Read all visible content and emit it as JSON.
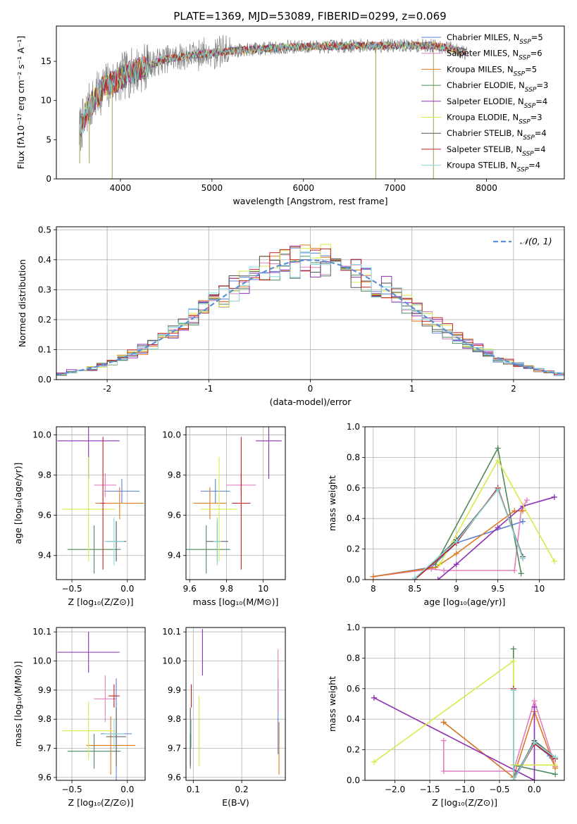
{
  "figure": {
    "title": "PLATE=1369, MJD=53089, FIBERID=0299, z=0.069"
  },
  "colors": {
    "Chabrier MILES": "#5b7fd6",
    "Salpeter MILES": "#e27fc0",
    "Kroupa MILES": "#e07a1f",
    "Chabrier ELODIE": "#4f8a5a",
    "Salpeter ELODIE": "#8e2fb2",
    "Kroupa ELODIE": "#d8ea4a",
    "Chabrier STELIB": "#555555",
    "Salpeter STELIB": "#c01f1f",
    "Kroupa STELIB": "#86d8da",
    "normal": "#5b8fd6",
    "data": "#808080"
  },
  "legend_spectrum": [
    {
      "model": "Chabrier MILES",
      "text": "Chabrier MILES, N",
      "sub": "SSP",
      "tail": "=5"
    },
    {
      "model": "Salpeter MILES",
      "text": "Salpeter MILES, N",
      "sub": "SSP",
      "tail": "=6"
    },
    {
      "model": "Kroupa MILES",
      "text": "Kroupa MILES, N",
      "sub": "SSP",
      "tail": "=5"
    },
    {
      "model": "Chabrier ELODIE",
      "text": "Chabrier ELODIE, N",
      "sub": "SSP",
      "tail": "=3"
    },
    {
      "model": "Salpeter ELODIE",
      "text": "Salpeter ELODIE, N",
      "sub": "SSP",
      "tail": "=4"
    },
    {
      "model": "Kroupa ELODIE",
      "text": "Kroupa ELODIE, N",
      "sub": "SSP",
      "tail": "=3"
    },
    {
      "model": "Chabrier STELIB",
      "text": "Chabrier STELIB, N",
      "sub": "SSP",
      "tail": "=4"
    },
    {
      "model": "Salpeter STELIB",
      "text": "Salpeter STELIB, N",
      "sub": "SSP",
      "tail": "=4"
    },
    {
      "model": "Kroupa STELIB",
      "text": "Kroupa STELIB, N",
      "sub": "SSP",
      "tail": "=4"
    }
  ],
  "chart_data": [
    {
      "id": "spectrum",
      "type": "line",
      "xlabel": "wavelength [Angstrom, rest frame]",
      "ylabel": "Flux [fλ10⁻¹⁷ erg cm⁻² s⁻¹ A⁻¹]",
      "xlim": [
        3300,
        8850
      ],
      "ylim": [
        0,
        19.5
      ],
      "xticks": [
        4000,
        5000,
        6000,
        7000,
        8000
      ],
      "yticks": [
        0,
        5,
        10,
        15
      ],
      "grid": false,
      "continuum": [
        [
          3550,
          6
        ],
        [
          3650,
          9
        ],
        [
          3800,
          11.5
        ],
        [
          3950,
          12.5
        ],
        [
          4100,
          13.5
        ],
        [
          4300,
          14.5
        ],
        [
          4500,
          15.3
        ],
        [
          4800,
          15.8
        ],
        [
          5100,
          16.2
        ],
        [
          5400,
          16.5
        ],
        [
          5800,
          16.8
        ],
        [
          6200,
          16.9
        ],
        [
          6600,
          17.0
        ],
        [
          7000,
          17.0
        ],
        [
          7400,
          17.0
        ],
        [
          7600,
          16.7
        ],
        [
          7800,
          16.0
        ]
      ],
      "spikes": [
        [
          3910,
          0
        ],
        [
          3555,
          2
        ],
        [
          6790,
          0
        ],
        [
          7420,
          0
        ],
        [
          3660,
          2
        ]
      ]
    },
    {
      "id": "residuals",
      "type": "histogram",
      "xlabel": "(data-model)/error",
      "ylabel": "Normed distribution",
      "xlim": [
        -2.5,
        2.5
      ],
      "ylim": [
        0,
        0.51
      ],
      "xticks": [
        -2,
        -1,
        0,
        1,
        2
      ],
      "yticks": [
        0.0,
        0.1,
        0.2,
        0.3,
        0.4,
        0.5
      ],
      "grid": true,
      "normal_legend": "𝒩(0, 1)",
      "bins": {
        "start": -2.5,
        "width": 0.1,
        "count": 50
      }
    },
    {
      "id": "age_vs_Z",
      "type": "scatter",
      "xlabel": "Z [log₁₀(Z/Z⊙)]",
      "ylabel": "age  [log₁₀(age/yr)]",
      "xlim": [
        -0.64,
        0.16
      ],
      "ylim": [
        9.28,
        10.04
      ],
      "xticks": [
        -0.5,
        0.0
      ],
      "xticklabels": [
        "−0.5",
        "0.0"
      ],
      "yticks": [
        9.4,
        9.6,
        9.8,
        10.0
      ],
      "grid": true,
      "points": [
        {
          "model": "Chabrier MILES",
          "x": -0.05,
          "xerr": 0.16,
          "y": 9.72,
          "yerr": 0.06
        },
        {
          "model": "Salpeter MILES",
          "x": -0.2,
          "xerr": 0.1,
          "y": 9.75,
          "yerr": 0.06
        },
        {
          "model": "Kroupa MILES",
          "x": -0.07,
          "xerr": 0.22,
          "y": 9.66,
          "yerr": 0.08
        },
        {
          "model": "Chabrier ELODIE",
          "x": -0.3,
          "xerr": 0.24,
          "y": 9.43,
          "yerr": 0.12
        },
        {
          "model": "Salpeter ELODIE",
          "x": -0.35,
          "xerr": 0.28,
          "y": 9.97,
          "yerr": 0.19
        },
        {
          "model": "Kroupa ELODIE",
          "x": -0.35,
          "xerr": 0.24,
          "y": 9.63,
          "yerr": 0.26
        },
        {
          "model": "Chabrier STELIB",
          "x": -0.1,
          "xerr": 0.09,
          "y": 9.47,
          "yerr": 0.1
        },
        {
          "model": "Salpeter STELIB",
          "x": -0.22,
          "xerr": 0.02,
          "y": 9.66,
          "yerr": 0.33
        },
        {
          "model": "Kroupa STELIB",
          "x": -0.12,
          "xerr": 0.09,
          "y": 9.47,
          "yerr": 0.12
        }
      ]
    },
    {
      "id": "age_vs_mass",
      "type": "scatter",
      "xlabel": "mass [log₁₀(M/M⊙)]",
      "ylabel": "",
      "xlim": [
        9.58,
        10.12
      ],
      "ylim": [
        9.28,
        10.04
      ],
      "xticks": [
        9.6,
        9.8,
        10.0
      ],
      "yticks": [
        9.4,
        9.6,
        9.8,
        10.0
      ],
      "grid": true,
      "points": [
        {
          "model": "Chabrier MILES",
          "x": 9.74,
          "xerr": 0.08,
          "y": 9.72,
          "yerr": 0.06
        },
        {
          "model": "Salpeter MILES",
          "x": 9.88,
          "xerr": 0.08,
          "y": 9.75,
          "yerr": 0.06
        },
        {
          "model": "Kroupa MILES",
          "x": 9.71,
          "xerr": 0.09,
          "y": 9.66,
          "yerr": 0.08
        },
        {
          "model": "Chabrier ELODIE",
          "x": 9.69,
          "xerr": 0.13,
          "y": 9.43,
          "yerr": 0.12
        },
        {
          "model": "Salpeter ELODIE",
          "x": 10.03,
          "xerr": 0.07,
          "y": 9.97,
          "yerr": 0.19
        },
        {
          "model": "Kroupa ELODIE",
          "x": 9.76,
          "xerr": 0.1,
          "y": 9.63,
          "yerr": 0.26
        },
        {
          "model": "Chabrier STELIB",
          "x": 9.75,
          "xerr": 0.06,
          "y": 9.47,
          "yerr": 0.1
        },
        {
          "model": "Salpeter STELIB",
          "x": 9.88,
          "xerr": 0.05,
          "y": 9.66,
          "yerr": 0.33
        },
        {
          "model": "Kroupa STELIB",
          "x": 9.75,
          "xerr": 0.02,
          "y": 9.47,
          "yerr": 0.12
        }
      ]
    },
    {
      "id": "weight_vs_age",
      "type": "line",
      "xlabel": "age  [log₁₀(age/yr)]",
      "ylabel": "mass weight",
      "xlim": [
        7.9,
        10.3
      ],
      "ylim": [
        0,
        1.0
      ],
      "xticks": [
        8.0,
        8.5,
        9.0,
        9.5,
        10.0
      ],
      "yticks": [
        0.0,
        0.2,
        0.4,
        0.6,
        0.8,
        1.0
      ],
      "grid": true,
      "series": [
        {
          "model": "Chabrier MILES",
          "points": [
            [
              8.0,
              0.02
            ],
            [
              8.7,
              0.08
            ],
            [
              9.0,
              0.24
            ],
            [
              9.8,
              0.38
            ]
          ]
        },
        {
          "model": "Salpeter MILES",
          "points": [
            [
              8.0,
              0.02
            ],
            [
              8.7,
              0.07
            ],
            [
              8.85,
              0.06
            ],
            [
              9.7,
              0.06
            ],
            [
              9.78,
              0.45
            ],
            [
              9.85,
              0.52
            ]
          ]
        },
        {
          "model": "Kroupa MILES",
          "points": [
            [
              8.0,
              0.02
            ],
            [
              8.75,
              0.08
            ],
            [
              9.0,
              0.17
            ],
            [
              9.7,
              0.45
            ],
            [
              9.8,
              0.45
            ]
          ]
        },
        {
          "model": "Chabrier ELODIE",
          "points": [
            [
              8.75,
              0.1
            ],
            [
              9.5,
              0.86
            ],
            [
              9.78,
              0.04
            ]
          ]
        },
        {
          "model": "Salpeter ELODIE",
          "points": [
            [
              8.78,
              0.0
            ],
            [
              9.0,
              0.1
            ],
            [
              9.5,
              0.34
            ],
            [
              9.8,
              0.48
            ],
            [
              10.18,
              0.54
            ]
          ]
        },
        {
          "model": "Kroupa ELODIE",
          "points": [
            [
              8.8,
              0.1
            ],
            [
              9.5,
              0.78
            ],
            [
              10.18,
              0.12
            ]
          ]
        },
        {
          "model": "Chabrier STELIB",
          "points": [
            [
              8.5,
              0.0
            ],
            [
              9.0,
              0.26
            ],
            [
              9.5,
              0.59
            ],
            [
              9.8,
              0.15
            ]
          ]
        },
        {
          "model": "Salpeter STELIB",
          "points": [
            [
              8.5,
              0.0
            ],
            [
              9.0,
              0.24
            ],
            [
              9.5,
              0.6
            ],
            [
              9.8,
              0.14
            ]
          ]
        },
        {
          "model": "Kroupa STELIB",
          "points": [
            [
              8.5,
              0.01
            ],
            [
              9.0,
              0.25
            ],
            [
              9.5,
              0.59
            ],
            [
              9.8,
              0.14
            ]
          ]
        }
      ]
    },
    {
      "id": "mass_vs_Z",
      "type": "scatter",
      "xlabel": "Z [log₁₀(Z/Z⊙)]",
      "ylabel": "mass [log₁₀(M/M⊙)]",
      "xlim": [
        -0.64,
        0.16
      ],
      "ylim": [
        9.59,
        10.115
      ],
      "xticks": [
        -0.5,
        0.0
      ],
      "xticklabels": [
        "−0.5",
        "0.0"
      ],
      "yticks": [
        9.6,
        9.7,
        9.8,
        9.9,
        10.0,
        10.1
      ],
      "grid": true,
      "points": [
        {
          "model": "Chabrier MILES",
          "x": -0.1,
          "xerr": 0.14,
          "y": 9.75,
          "yerr": 0.19
        },
        {
          "model": "Salpeter MILES",
          "x": -0.2,
          "xerr": 0.1,
          "y": 9.87,
          "yerr": 0.08
        },
        {
          "model": "Kroupa MILES",
          "x": -0.15,
          "xerr": 0.22,
          "y": 9.71,
          "yerr": 0.1
        },
        {
          "model": "Chabrier ELODIE",
          "x": -0.3,
          "xerr": 0.24,
          "y": 9.69,
          "yerr": 0.06
        },
        {
          "model": "Salpeter ELODIE",
          "x": -0.35,
          "xerr": 0.28,
          "y": 10.03,
          "yerr": 0.07
        },
        {
          "model": "Kroupa ELODIE",
          "x": -0.35,
          "xerr": 0.24,
          "y": 9.76,
          "yerr": 0.1
        },
        {
          "model": "Chabrier STELIB",
          "x": -0.1,
          "xerr": 0.09,
          "y": 9.74,
          "yerr": 0.1
        },
        {
          "model": "Salpeter STELIB",
          "x": -0.12,
          "xerr": 0.05,
          "y": 9.88,
          "yerr": 0.04
        },
        {
          "model": "Kroupa STELIB",
          "x": -0.12,
          "xerr": 0.09,
          "y": 9.75,
          "yerr": 0.05
        }
      ]
    },
    {
      "id": "mass_vs_EBV",
      "type": "scatter",
      "xlabel": "E(B-V)",
      "ylabel": "",
      "xlim": [
        0.085,
        0.29
      ],
      "ylim": [
        9.59,
        10.115
      ],
      "xticks": [
        0.1,
        0.2
      ],
      "yticks": [
        9.6,
        9.7,
        9.8,
        9.9,
        10.0,
        10.1
      ],
      "grid": true,
      "points": [
        {
          "model": "Chabrier MILES",
          "x": 0.275,
          "y": 9.81,
          "yerr": 0.13
        },
        {
          "model": "Salpeter MILES",
          "x": 0.275,
          "y": 9.93,
          "yerr": 0.11
        },
        {
          "model": "Kroupa MILES",
          "x": 0.277,
          "y": 9.7,
          "yerr": 0.09
        },
        {
          "model": "Chabrier ELODIE",
          "x": 0.094,
          "y": 9.69,
          "yerr": 0.06
        },
        {
          "model": "Salpeter ELODIE",
          "x": 0.119,
          "y": 10.03,
          "yerr": 0.08
        },
        {
          "model": "Kroupa ELODIE",
          "x": 0.112,
          "y": 9.76,
          "yerr": 0.12
        },
        {
          "model": "Chabrier STELIB",
          "x": 0.094,
          "y": 9.74,
          "yerr": 0.1
        },
        {
          "model": "Salpeter STELIB",
          "x": 0.096,
          "y": 9.88,
          "yerr": 0.04
        },
        {
          "model": "Kroupa STELIB",
          "x": 0.096,
          "y": 9.75,
          "yerr": 0.05
        }
      ]
    },
    {
      "id": "weight_vs_Z",
      "type": "line",
      "xlabel": "Z [log₁₀(Z/Z⊙)]",
      "ylabel": "mass weight",
      "xlim": [
        -2.43,
        0.43
      ],
      "ylim": [
        0,
        1.0
      ],
      "xticks": [
        -2.0,
        -1.5,
        -1.0,
        -0.5,
        0.0
      ],
      "xticklabels": [
        "−2.0",
        "−1.5",
        "−1.0",
        "−0.5",
        "0.0"
      ],
      "yticks": [
        0.0,
        0.2,
        0.4,
        0.6,
        0.8,
        1.0
      ],
      "grid": true,
      "series": [
        {
          "model": "Chabrier MILES",
          "points": [
            [
              -1.3,
              0.38
            ],
            [
              -0.3,
              0.02
            ],
            [
              0.0,
              0.24
            ],
            [
              0.22,
              0.16
            ],
            [
              0.3,
              0.09
            ]
          ]
        },
        {
          "model": "Salpeter MILES",
          "points": [
            [
              -1.3,
              0.26
            ],
            [
              -1.3,
              0.06
            ],
            [
              -0.3,
              0.06
            ],
            [
              0.0,
              0.52
            ],
            [
              0.3,
              0.09
            ]
          ]
        },
        {
          "model": "Kroupa MILES",
          "points": [
            [
              -1.3,
              0.38
            ],
            [
              -0.3,
              0.02
            ],
            [
              0.0,
              0.45
            ],
            [
              0.3,
              0.08
            ]
          ]
        },
        {
          "model": "Chabrier ELODIE",
          "points": [
            [
              -0.3,
              0.86
            ],
            [
              -0.3,
              0.1
            ],
            [
              0.3,
              0.04
            ]
          ]
        },
        {
          "model": "Salpeter ELODIE",
          "points": [
            [
              -2.3,
              0.54
            ],
            [
              0.0,
              0.0
            ],
            [
              0.0,
              0.48
            ]
          ]
        },
        {
          "model": "Kroupa ELODIE",
          "points": [
            [
              -2.3,
              0.12
            ],
            [
              -0.3,
              0.78
            ],
            [
              -0.3,
              0.1
            ],
            [
              0.3,
              0.1
            ]
          ]
        },
        {
          "model": "Chabrier STELIB",
          "points": [
            [
              -0.3,
              0.59
            ],
            [
              -0.3,
              0.0
            ],
            [
              0.0,
              0.26
            ],
            [
              0.3,
              0.15
            ]
          ]
        },
        {
          "model": "Salpeter STELIB",
          "points": [
            [
              -0.3,
              0.6
            ],
            [
              -0.3,
              0.0
            ],
            [
              0.0,
              0.24
            ],
            [
              0.3,
              0.14
            ]
          ]
        },
        {
          "model": "Kroupa STELIB",
          "points": [
            [
              -0.3,
              0.59
            ],
            [
              -0.3,
              0.0
            ],
            [
              0.0,
              0.25
            ],
            [
              0.3,
              0.15
            ]
          ]
        }
      ]
    }
  ]
}
